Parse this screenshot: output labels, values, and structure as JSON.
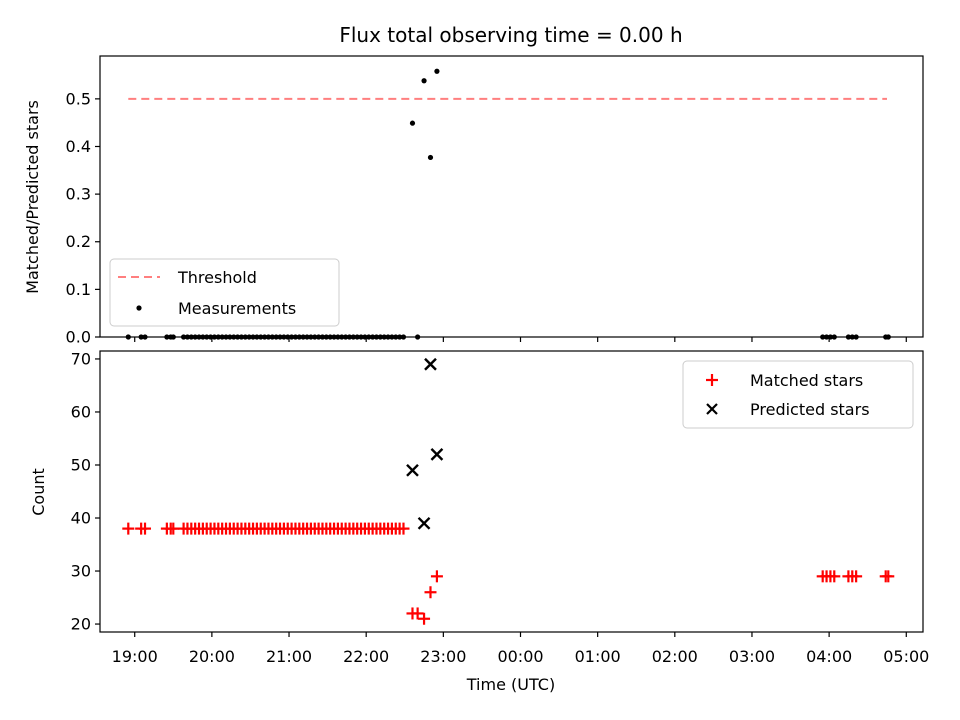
{
  "figure": {
    "title": "Flux total observing time = 0.00 h",
    "xlabel": "Time (UTC)",
    "x_ticks": [
      "19:00",
      "20:00",
      "21:00",
      "22:00",
      "23:00",
      "00:00",
      "01:00",
      "02:00",
      "03:00",
      "04:00",
      "05:00"
    ],
    "x_range_hours_utc": [
      "18:33",
      "05:13"
    ]
  },
  "colors": {
    "threshold": "#ff7f7f",
    "measurements": "#000000",
    "matched": "#ff0000",
    "predicted": "#000000"
  },
  "chart_data": [
    {
      "type": "scatter",
      "ylabel": "Matched/Predicted stars",
      "ylim": [
        0,
        0.59
      ],
      "y_ticks": [
        "0.0",
        "0.1",
        "0.2",
        "0.3",
        "0.4",
        "0.5"
      ],
      "grid": false,
      "legend_position": "lower-left",
      "threshold": {
        "name": "Threshold",
        "value": 0.5,
        "x_start": "18:55",
        "x_end": "04:45",
        "style": "dashed"
      },
      "measurements": {
        "name": "Measurements",
        "points": [
          {
            "x": "18:55",
            "y": 0
          },
          {
            "x": "19:05",
            "y": 0
          },
          {
            "x": "19:08",
            "y": 0
          },
          {
            "x": "19:25",
            "y": 0
          },
          {
            "x": "19:28",
            "y": 0
          },
          {
            "x": "19:30",
            "y": 0
          },
          {
            "x": "19:38",
            "y": 0
          },
          {
            "x": "19:41",
            "y": 0
          },
          {
            "x": "19:44",
            "y": 0
          },
          {
            "x": "19:47",
            "y": 0
          },
          {
            "x": "19:50",
            "y": 0
          },
          {
            "x": "19:53",
            "y": 0
          },
          {
            "x": "19:56",
            "y": 0
          },
          {
            "x": "19:59",
            "y": 0
          },
          {
            "x": "20:02",
            "y": 0
          },
          {
            "x": "20:05",
            "y": 0
          },
          {
            "x": "20:08",
            "y": 0
          },
          {
            "x": "20:11",
            "y": 0
          },
          {
            "x": "20:14",
            "y": 0
          },
          {
            "x": "20:17",
            "y": 0
          },
          {
            "x": "20:20",
            "y": 0
          },
          {
            "x": "20:23",
            "y": 0
          },
          {
            "x": "20:26",
            "y": 0
          },
          {
            "x": "20:29",
            "y": 0
          },
          {
            "x": "20:32",
            "y": 0
          },
          {
            "x": "20:35",
            "y": 0
          },
          {
            "x": "20:38",
            "y": 0
          },
          {
            "x": "20:41",
            "y": 0
          },
          {
            "x": "20:44",
            "y": 0
          },
          {
            "x": "20:47",
            "y": 0
          },
          {
            "x": "20:50",
            "y": 0
          },
          {
            "x": "20:53",
            "y": 0
          },
          {
            "x": "20:56",
            "y": 0
          },
          {
            "x": "20:59",
            "y": 0
          },
          {
            "x": "21:02",
            "y": 0
          },
          {
            "x": "21:05",
            "y": 0
          },
          {
            "x": "21:08",
            "y": 0
          },
          {
            "x": "21:11",
            "y": 0
          },
          {
            "x": "21:14",
            "y": 0
          },
          {
            "x": "21:17",
            "y": 0
          },
          {
            "x": "21:20",
            "y": 0
          },
          {
            "x": "21:23",
            "y": 0
          },
          {
            "x": "21:26",
            "y": 0
          },
          {
            "x": "21:29",
            "y": 0
          },
          {
            "x": "21:32",
            "y": 0
          },
          {
            "x": "21:35",
            "y": 0
          },
          {
            "x": "21:38",
            "y": 0
          },
          {
            "x": "21:41",
            "y": 0
          },
          {
            "x": "21:44",
            "y": 0
          },
          {
            "x": "21:47",
            "y": 0
          },
          {
            "x": "21:50",
            "y": 0
          },
          {
            "x": "21:53",
            "y": 0
          },
          {
            "x": "21:56",
            "y": 0
          },
          {
            "x": "21:59",
            "y": 0
          },
          {
            "x": "22:02",
            "y": 0
          },
          {
            "x": "22:05",
            "y": 0
          },
          {
            "x": "22:08",
            "y": 0
          },
          {
            "x": "22:11",
            "y": 0
          },
          {
            "x": "22:14",
            "y": 0
          },
          {
            "x": "22:17",
            "y": 0
          },
          {
            "x": "22:20",
            "y": 0
          },
          {
            "x": "22:23",
            "y": 0
          },
          {
            "x": "22:26",
            "y": 0
          },
          {
            "x": "22:29",
            "y": 0
          },
          {
            "x": "22:36",
            "y": 0.449
          },
          {
            "x": "22:40",
            "y": 0
          },
          {
            "x": "22:45",
            "y": 0.538
          },
          {
            "x": "22:50",
            "y": 0.377
          },
          {
            "x": "22:55",
            "y": 0.558
          },
          {
            "x": "03:55",
            "y": 0
          },
          {
            "x": "03:58",
            "y": 0
          },
          {
            "x": "04:01",
            "y": 0
          },
          {
            "x": "04:04",
            "y": 0
          },
          {
            "x": "04:15",
            "y": 0
          },
          {
            "x": "04:18",
            "y": 0
          },
          {
            "x": "04:21",
            "y": 0
          },
          {
            "x": "04:44",
            "y": 0
          },
          {
            "x": "04:46",
            "y": 0
          }
        ]
      }
    },
    {
      "type": "scatter",
      "ylabel": "Count",
      "ylim": [
        18.5,
        71.5
      ],
      "y_ticks": [
        "20",
        "30",
        "40",
        "50",
        "60",
        "70"
      ],
      "grid": false,
      "legend_position": "upper-right",
      "series": [
        {
          "name": "Matched stars",
          "marker": "plus",
          "points": [
            {
              "x": "18:55",
              "y": 38
            },
            {
              "x": "19:05",
              "y": 38
            },
            {
              "x": "19:08",
              "y": 38
            },
            {
              "x": "19:25",
              "y": 38
            },
            {
              "x": "19:28",
              "y": 38
            },
            {
              "x": "19:30",
              "y": 38
            },
            {
              "x": "19:38",
              "y": 38
            },
            {
              "x": "19:41",
              "y": 38
            },
            {
              "x": "19:44",
              "y": 38
            },
            {
              "x": "19:47",
              "y": 38
            },
            {
              "x": "19:50",
              "y": 38
            },
            {
              "x": "19:53",
              "y": 38
            },
            {
              "x": "19:56",
              "y": 38
            },
            {
              "x": "19:59",
              "y": 38
            },
            {
              "x": "20:02",
              "y": 38
            },
            {
              "x": "20:05",
              "y": 38
            },
            {
              "x": "20:08",
              "y": 38
            },
            {
              "x": "20:11",
              "y": 38
            },
            {
              "x": "20:14",
              "y": 38
            },
            {
              "x": "20:17",
              "y": 38
            },
            {
              "x": "20:20",
              "y": 38
            },
            {
              "x": "20:23",
              "y": 38
            },
            {
              "x": "20:26",
              "y": 38
            },
            {
              "x": "20:29",
              "y": 38
            },
            {
              "x": "20:32",
              "y": 38
            },
            {
              "x": "20:35",
              "y": 38
            },
            {
              "x": "20:38",
              "y": 38
            },
            {
              "x": "20:41",
              "y": 38
            },
            {
              "x": "20:44",
              "y": 38
            },
            {
              "x": "20:47",
              "y": 38
            },
            {
              "x": "20:50",
              "y": 38
            },
            {
              "x": "20:53",
              "y": 38
            },
            {
              "x": "20:56",
              "y": 38
            },
            {
              "x": "20:59",
              "y": 38
            },
            {
              "x": "21:02",
              "y": 38
            },
            {
              "x": "21:05",
              "y": 38
            },
            {
              "x": "21:08",
              "y": 38
            },
            {
              "x": "21:11",
              "y": 38
            },
            {
              "x": "21:14",
              "y": 38
            },
            {
              "x": "21:17",
              "y": 38
            },
            {
              "x": "21:20",
              "y": 38
            },
            {
              "x": "21:23",
              "y": 38
            },
            {
              "x": "21:26",
              "y": 38
            },
            {
              "x": "21:29",
              "y": 38
            },
            {
              "x": "21:32",
              "y": 38
            },
            {
              "x": "21:35",
              "y": 38
            },
            {
              "x": "21:38",
              "y": 38
            },
            {
              "x": "21:41",
              "y": 38
            },
            {
              "x": "21:44",
              "y": 38
            },
            {
              "x": "21:47",
              "y": 38
            },
            {
              "x": "21:50",
              "y": 38
            },
            {
              "x": "21:53",
              "y": 38
            },
            {
              "x": "21:56",
              "y": 38
            },
            {
              "x": "21:59",
              "y": 38
            },
            {
              "x": "22:02",
              "y": 38
            },
            {
              "x": "22:05",
              "y": 38
            },
            {
              "x": "22:08",
              "y": 38
            },
            {
              "x": "22:11",
              "y": 38
            },
            {
              "x": "22:14",
              "y": 38
            },
            {
              "x": "22:17",
              "y": 38
            },
            {
              "x": "22:20",
              "y": 38
            },
            {
              "x": "22:23",
              "y": 38
            },
            {
              "x": "22:26",
              "y": 38
            },
            {
              "x": "22:29",
              "y": 38
            },
            {
              "x": "22:36",
              "y": 22
            },
            {
              "x": "22:40",
              "y": 22
            },
            {
              "x": "22:45",
              "y": 21
            },
            {
              "x": "22:50",
              "y": 26
            },
            {
              "x": "22:55",
              "y": 29
            },
            {
              "x": "03:55",
              "y": 29
            },
            {
              "x": "03:58",
              "y": 29
            },
            {
              "x": "04:01",
              "y": 29
            },
            {
              "x": "04:04",
              "y": 29
            },
            {
              "x": "04:15",
              "y": 29
            },
            {
              "x": "04:18",
              "y": 29
            },
            {
              "x": "04:21",
              "y": 29
            },
            {
              "x": "04:44",
              "y": 29
            },
            {
              "x": "04:46",
              "y": 29
            }
          ]
        },
        {
          "name": "Predicted stars",
          "marker": "x",
          "points": [
            {
              "x": "22:36",
              "y": 49
            },
            {
              "x": "22:45",
              "y": 39
            },
            {
              "x": "22:50",
              "y": 69
            },
            {
              "x": "22:55",
              "y": 52
            }
          ]
        }
      ]
    }
  ]
}
